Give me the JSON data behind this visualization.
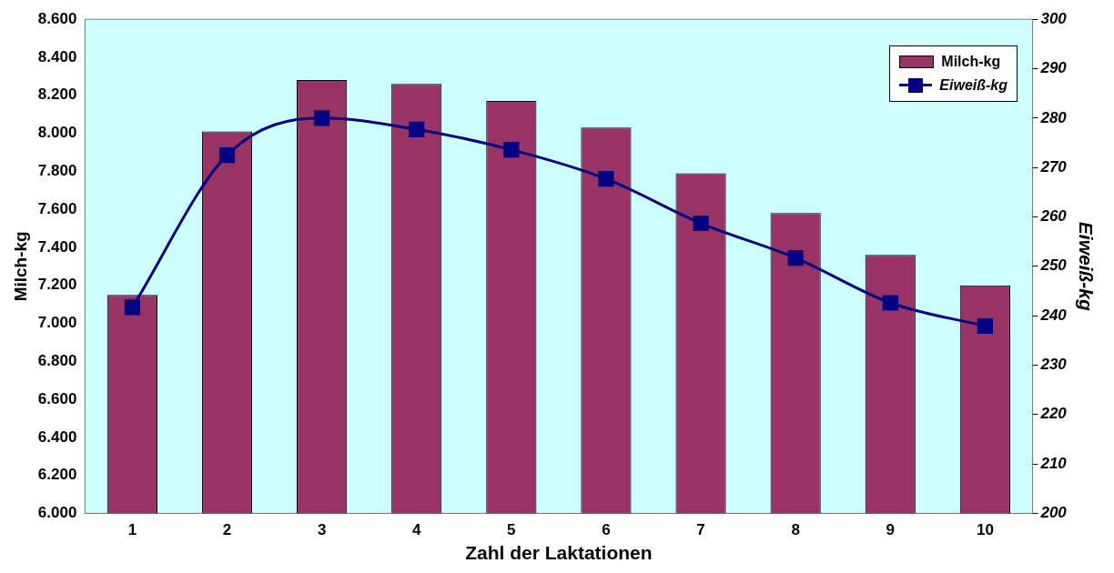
{
  "chart_data": {
    "type": "bar",
    "xlabel": "Zahl der Laktationen",
    "ylabel": "Milch-kg",
    "y2label": "Eiweiß-kg",
    "categories": [
      "1",
      "2",
      "3",
      "4",
      "5",
      "6",
      "7",
      "8",
      "9",
      "10"
    ],
    "series": [
      {
        "name": "Milch-kg",
        "color": "#993366",
        "values": [
          7150,
          8010,
          8280,
          8260,
          8170,
          8030,
          7790,
          7580,
          7360,
          7200
        ]
      },
      {
        "name": "Eiweiß-kg",
        "type": "line",
        "axis": "y2",
        "color": "#000080",
        "marker": "square",
        "values": [
          241.7,
          272.5,
          280,
          277.7,
          273.6,
          267.7,
          258.7,
          251.7,
          242.6,
          237.9
        ]
      }
    ],
    "ylim": [
      6000,
      8600
    ],
    "yticks": [
      {
        "value": 6000,
        "label": "6.000"
      },
      {
        "value": 6200,
        "label": "6.200"
      },
      {
        "value": 6400,
        "label": "6.400"
      },
      {
        "value": 6600,
        "label": "6.600"
      },
      {
        "value": 6800,
        "label": "6.800"
      },
      {
        "value": 7000,
        "label": "7.000"
      },
      {
        "value": 7200,
        "label": "7.200"
      },
      {
        "value": 7400,
        "label": "7.400"
      },
      {
        "value": 7600,
        "label": "7.600"
      },
      {
        "value": 7800,
        "label": "7.800"
      },
      {
        "value": 8000,
        "label": "8.000"
      },
      {
        "value": 8200,
        "label": "8.200"
      },
      {
        "value": 8400,
        "label": "8.400"
      },
      {
        "value": 8600,
        "label": "8.600"
      }
    ],
    "y2lim": [
      200,
      300
    ],
    "y2ticks": [
      200,
      210,
      220,
      230,
      240,
      250,
      260,
      270,
      280,
      290,
      300
    ],
    "legend": "top right"
  }
}
